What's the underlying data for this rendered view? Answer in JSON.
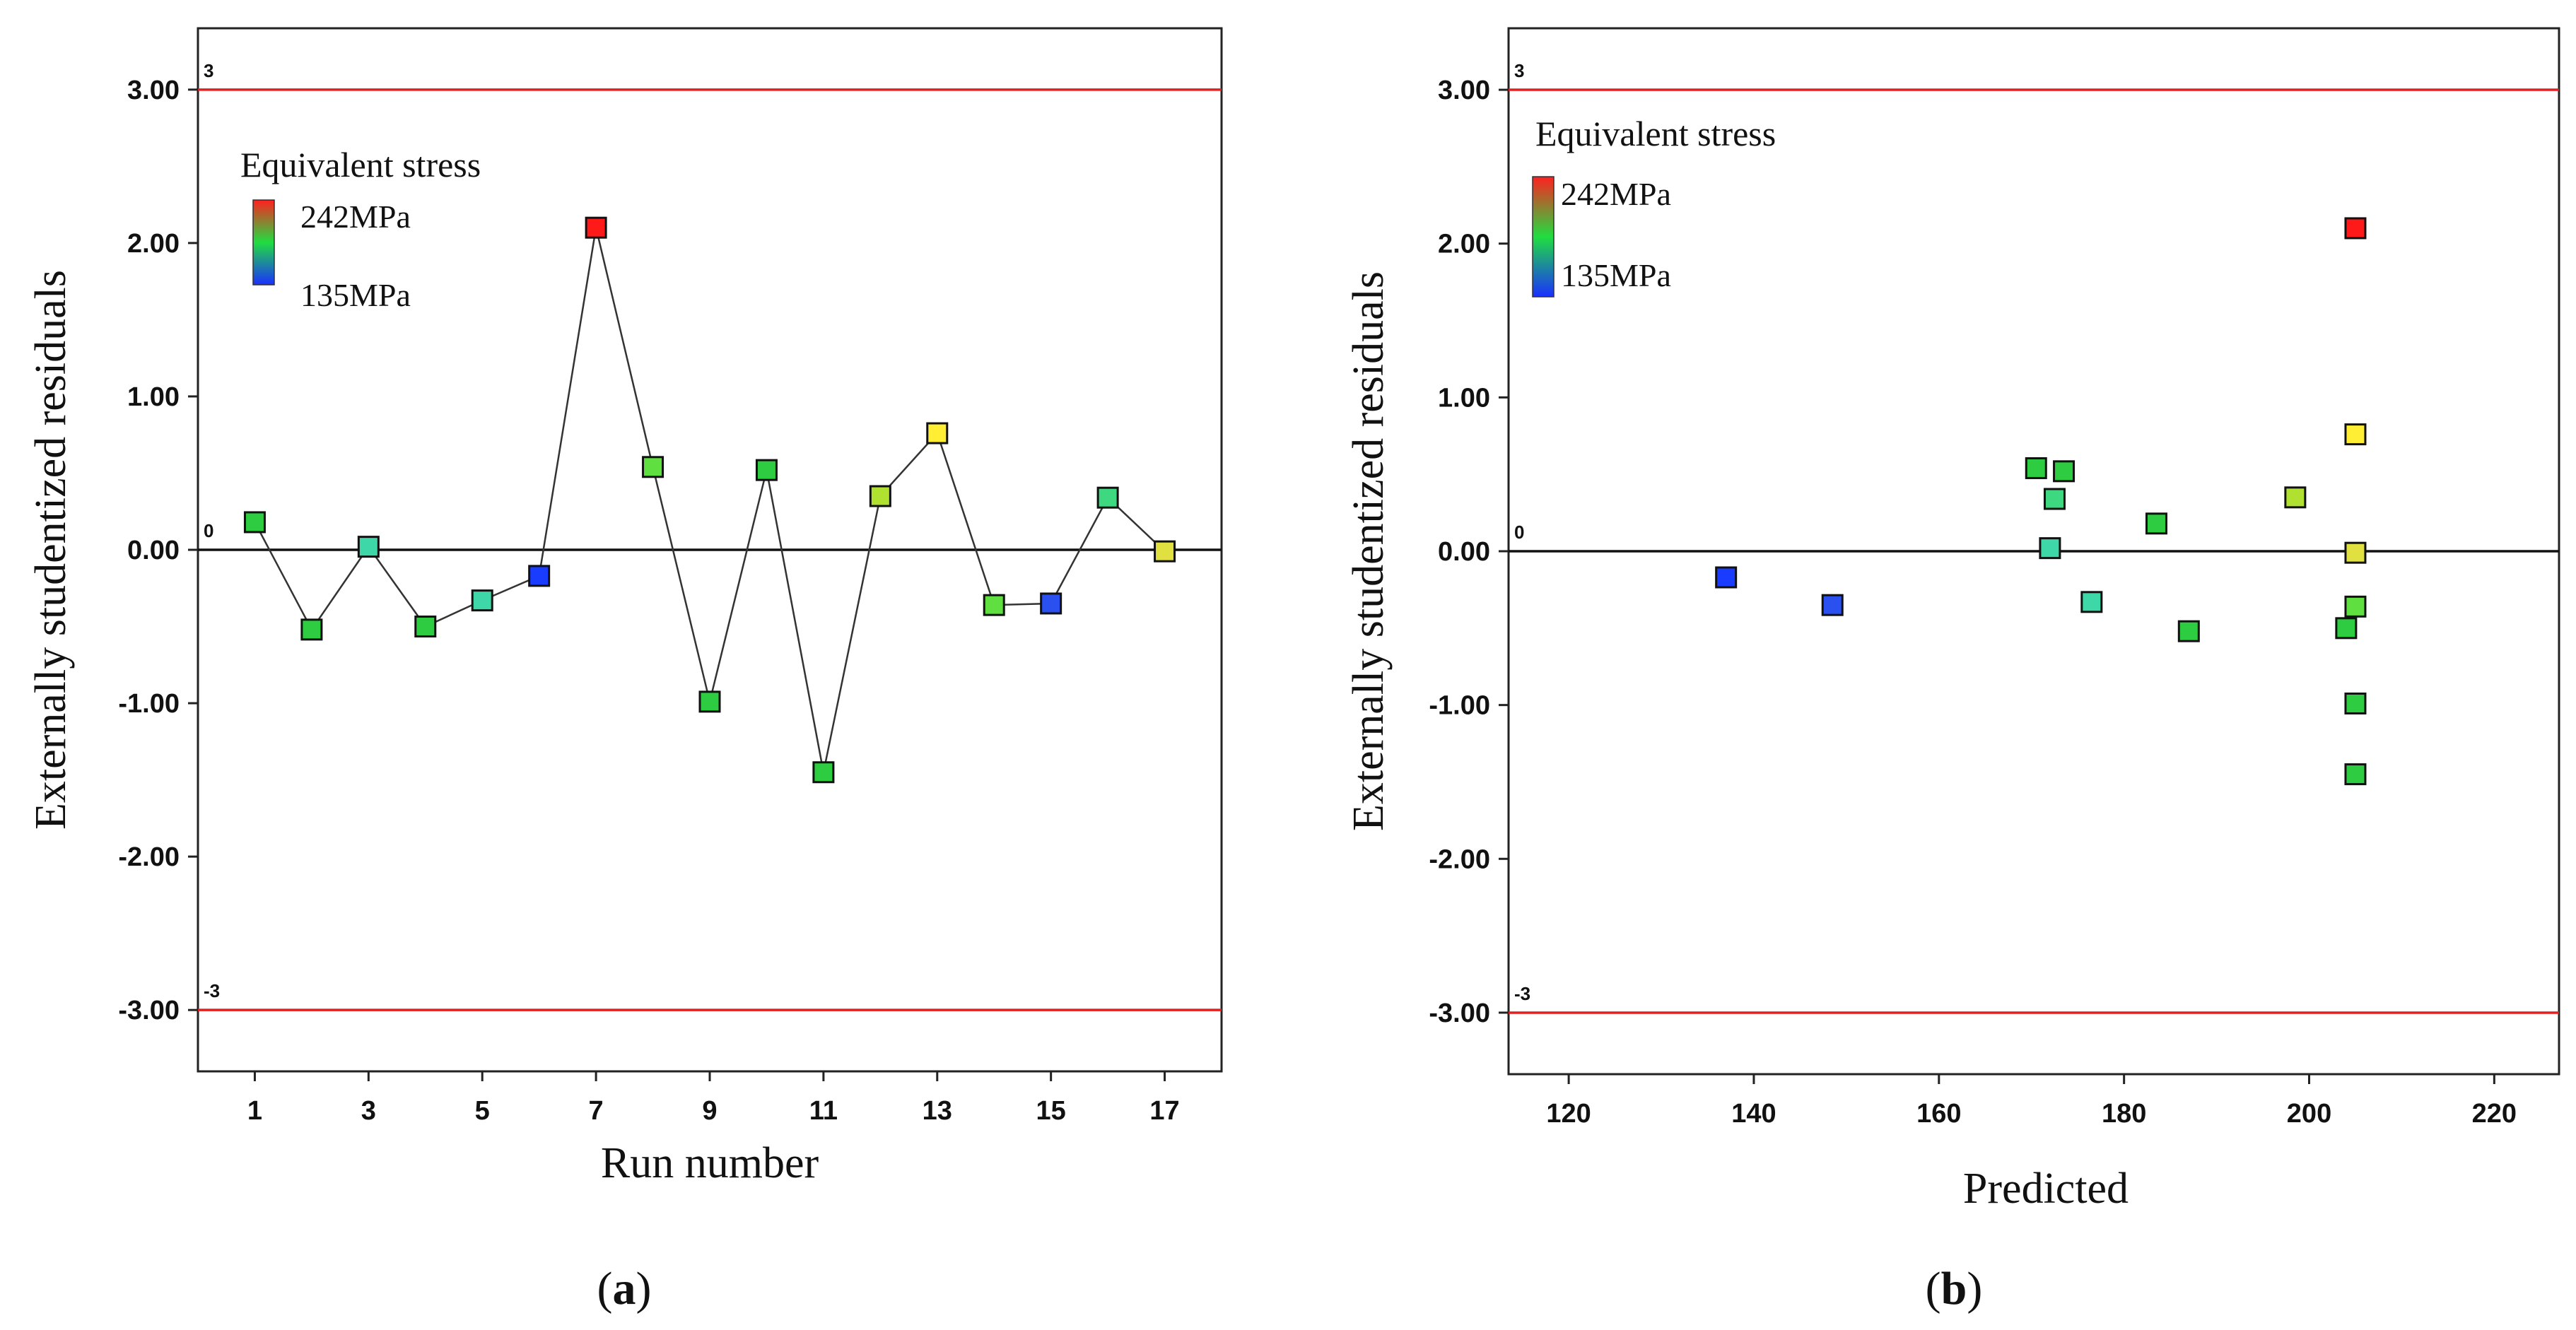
{
  "chart_data": [
    {
      "type": "line",
      "panel_label": "(a)",
      "panel_letter": "a",
      "xlabel": "Run number",
      "ylabel": "Externally studentized residuals",
      "xlim": [
        0,
        18
      ],
      "ylim": [
        -3.4,
        3.4
      ],
      "x_ticks": [
        1,
        3,
        5,
        7,
        9,
        11,
        13,
        15,
        17
      ],
      "x_tick_labels": [
        "1",
        "3",
        "5",
        "7",
        "9",
        "11",
        "13",
        "15",
        "17"
      ],
      "y_ticks": [
        -3,
        -2,
        -1,
        0,
        1,
        2,
        3
      ],
      "y_tick_labels": [
        "-3.00",
        "-2.00",
        "-1.00",
        "0.00",
        "1.00",
        "2.00",
        "3.00"
      ],
      "limit_lines": [
        {
          "value": 3,
          "label": "3",
          "color": "#e02020"
        },
        {
          "value": -3,
          "label": "-3",
          "color": "#e02020"
        },
        {
          "value": 0,
          "label": "0",
          "color": "#111111"
        }
      ],
      "legend": {
        "title": "Equivalent stress",
        "max_label": "242MPa",
        "min_label": "135MPa"
      },
      "x": [
        1,
        2,
        3,
        4,
        5,
        6,
        7,
        8,
        9,
        10,
        11,
        12,
        13,
        14,
        15,
        16,
        17
      ],
      "y": [
        0.18,
        -0.52,
        0.02,
        -0.5,
        -0.33,
        -0.17,
        2.1,
        0.54,
        -0.99,
        0.52,
        -1.45,
        0.35,
        0.76,
        -0.36,
        -0.35,
        0.34,
        -0.01
      ],
      "colors": [
        "#2ecc40",
        "#2ecc40",
        "#3ed8a8",
        "#2ecc40",
        "#3ed8a8",
        "#1a3cff",
        "#ff1a1a",
        "#60e040",
        "#2ecc40",
        "#2ecc40",
        "#2ecc40",
        "#b0e030",
        "#ffee33",
        "#60e040",
        "#2a50f0",
        "#3ed880",
        "#e0e040"
      ]
    },
    {
      "type": "scatter",
      "panel_label": "(b)",
      "panel_letter": "b",
      "xlabel": "Predicted",
      "ylabel": "Externally studentized residuals",
      "xlim": [
        113.5,
        227
      ],
      "ylim": [
        -3.4,
        3.4
      ],
      "x_ticks": [
        120,
        140,
        160,
        180,
        200,
        220
      ],
      "x_tick_labels": [
        "120",
        "140",
        "160",
        "180",
        "200",
        "220"
      ],
      "y_ticks": [
        -3,
        -2,
        -1,
        0,
        1,
        2,
        3
      ],
      "y_tick_labels": [
        "-3.00",
        "-2.00",
        "-1.00",
        "0.00",
        "1.00",
        "2.00",
        "3.00"
      ],
      "limit_lines": [
        {
          "value": 3,
          "label": "3",
          "color": "#e02020"
        },
        {
          "value": -3,
          "label": "-3",
          "color": "#e02020"
        },
        {
          "value": 0,
          "label": "0",
          "color": "#111111"
        }
      ],
      "legend": {
        "title": "Equivalent stress",
        "max_label": "242MPa",
        "min_label": "135MPa"
      },
      "x": [
        137,
        148.5,
        170.5,
        172,
        172.5,
        173.5,
        176.5,
        183.5,
        187,
        198.5,
        204,
        205,
        205,
        205,
        205,
        205,
        205
      ],
      "y": [
        -0.17,
        -0.35,
        0.54,
        0.02,
        0.34,
        0.52,
        -0.33,
        0.18,
        -0.52,
        0.35,
        -0.5,
        2.1,
        0.76,
        -0.01,
        -0.36,
        -0.99,
        -1.45
      ],
      "colors": [
        "#1a3cff",
        "#2a50f0",
        "#2ecc40",
        "#3ed8a8",
        "#3ed880",
        "#2ecc40",
        "#3ed8a8",
        "#2ecc40",
        "#2ecc40",
        "#b0e030",
        "#2ecc40",
        "#ff1a1a",
        "#ffee33",
        "#e0e040",
        "#60e040",
        "#2ecc40",
        "#2ecc40"
      ]
    }
  ]
}
